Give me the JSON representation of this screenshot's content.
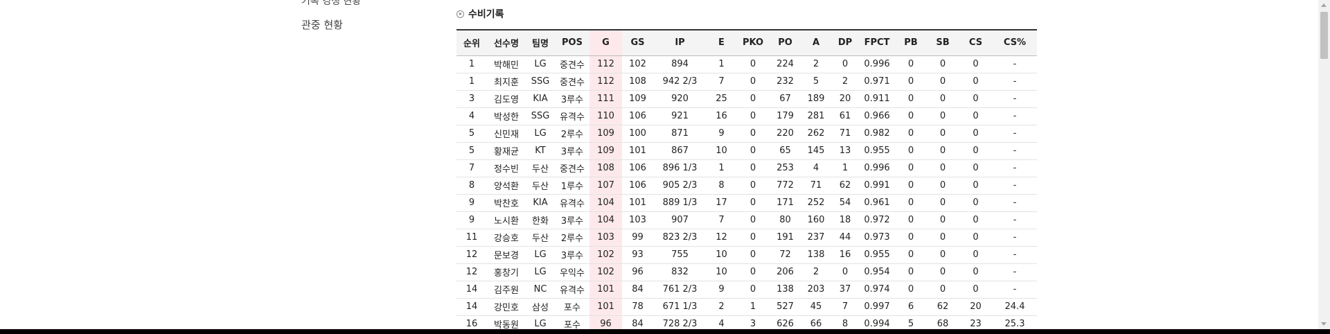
{
  "sidebar": {
    "items": [
      {
        "label": "기록 경쟁 현황"
      },
      {
        "label": "관중 현황"
      }
    ]
  },
  "section": {
    "title": "수비기록"
  },
  "table": {
    "headers": [
      "순위",
      "선수명",
      "팀명",
      "POS",
      "G",
      "GS",
      "IP",
      "E",
      "PKO",
      "PO",
      "A",
      "DP",
      "FPCT",
      "PB",
      "SB",
      "CS",
      "CS%"
    ],
    "rows": [
      [
        "1",
        "박해민",
        "LG",
        "중견수",
        "112",
        "102",
        "894",
        "1",
        "0",
        "224",
        "2",
        "0",
        "0.996",
        "0",
        "0",
        "0",
        "-"
      ],
      [
        "1",
        "최지훈",
        "SSG",
        "중견수",
        "112",
        "108",
        "942 2/3",
        "7",
        "0",
        "232",
        "5",
        "2",
        "0.971",
        "0",
        "0",
        "0",
        "-"
      ],
      [
        "3",
        "김도영",
        "KIA",
        "3루수",
        "111",
        "109",
        "920",
        "25",
        "0",
        "67",
        "189",
        "20",
        "0.911",
        "0",
        "0",
        "0",
        "-"
      ],
      [
        "4",
        "박성한",
        "SSG",
        "유격수",
        "110",
        "106",
        "921",
        "16",
        "0",
        "179",
        "281",
        "61",
        "0.966",
        "0",
        "0",
        "0",
        "-"
      ],
      [
        "5",
        "신민재",
        "LG",
        "2루수",
        "109",
        "100",
        "871",
        "9",
        "0",
        "220",
        "262",
        "71",
        "0.982",
        "0",
        "0",
        "0",
        "-"
      ],
      [
        "5",
        "황재균",
        "KT",
        "3루수",
        "109",
        "101",
        "867",
        "10",
        "0",
        "65",
        "145",
        "13",
        "0.955",
        "0",
        "0",
        "0",
        "-"
      ],
      [
        "7",
        "정수빈",
        "두산",
        "중견수",
        "108",
        "106",
        "896 1/3",
        "1",
        "0",
        "253",
        "4",
        "1",
        "0.996",
        "0",
        "0",
        "0",
        "-"
      ],
      [
        "8",
        "양석환",
        "두산",
        "1루수",
        "107",
        "106",
        "905 2/3",
        "8",
        "0",
        "772",
        "71",
        "62",
        "0.991",
        "0",
        "0",
        "0",
        "-"
      ],
      [
        "9",
        "박찬호",
        "KIA",
        "유격수",
        "104",
        "101",
        "889 1/3",
        "17",
        "0",
        "171",
        "252",
        "54",
        "0.961",
        "0",
        "0",
        "0",
        "-"
      ],
      [
        "9",
        "노시환",
        "한화",
        "3루수",
        "104",
        "103",
        "907",
        "7",
        "0",
        "80",
        "160",
        "18",
        "0.972",
        "0",
        "0",
        "0",
        "-"
      ],
      [
        "11",
        "강승호",
        "두산",
        "2루수",
        "103",
        "99",
        "823 2/3",
        "12",
        "0",
        "191",
        "237",
        "44",
        "0.973",
        "0",
        "0",
        "0",
        "-"
      ],
      [
        "12",
        "문보경",
        "LG",
        "3루수",
        "102",
        "93",
        "755",
        "10",
        "0",
        "72",
        "138",
        "16",
        "0.955",
        "0",
        "0",
        "0",
        "-"
      ],
      [
        "12",
        "홍창기",
        "LG",
        "우익수",
        "102",
        "96",
        "832",
        "10",
        "0",
        "206",
        "2",
        "0",
        "0.954",
        "0",
        "0",
        "0",
        "-"
      ],
      [
        "14",
        "김주원",
        "NC",
        "유격수",
        "101",
        "84",
        "761 2/3",
        "9",
        "0",
        "138",
        "203",
        "37",
        "0.974",
        "0",
        "0",
        "0",
        "-"
      ],
      [
        "14",
        "강민호",
        "삼성",
        "포수",
        "101",
        "78",
        "671 1/3",
        "2",
        "1",
        "527",
        "45",
        "7",
        "0.997",
        "6",
        "62",
        "20",
        "24.4"
      ],
      [
        "16",
        "박동원",
        "LG",
        "포수",
        "96",
        "84",
        "728 2/3",
        "4",
        "3",
        "626",
        "66",
        "8",
        "0.994",
        "5",
        "68",
        "23",
        "25.3"
      ]
    ]
  },
  "colors": {
    "sorted_column_bg": "#fde9ec",
    "header_bg": "#f4f4f4",
    "header_top_border": "#333333"
  }
}
